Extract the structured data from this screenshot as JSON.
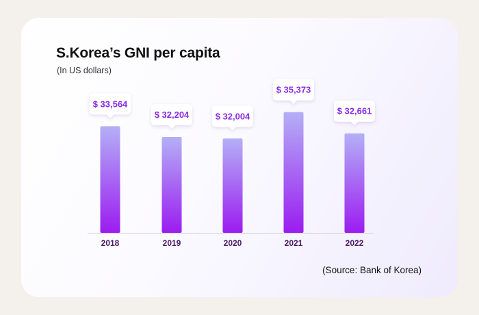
{
  "chart_data": {
    "type": "bar",
    "title": "S.Korea’s GNI per capita",
    "subtitle": "(In US dollars)",
    "source": "(Source: Bank of Korea)",
    "categories": [
      "2018",
      "2019",
      "2020",
      "2021",
      "2022"
    ],
    "values": [
      33564,
      32204,
      32004,
      35373,
      32661
    ],
    "value_labels": [
      "$ 33,564",
      "$ 32,204",
      "$ 32,004",
      "$ 35,373",
      "$ 32,661"
    ],
    "xlabel": "",
    "ylabel": "",
    "ylim": [
      20000,
      36000
    ],
    "grid": false,
    "legend": "none",
    "colors": {
      "bar_top": "#b4b0f6",
      "bar_bottom": "#9b1cf0",
      "label_text": "#8a2be2",
      "tick_text": "#4a1a66",
      "axis": "#cfcfd8"
    }
  }
}
